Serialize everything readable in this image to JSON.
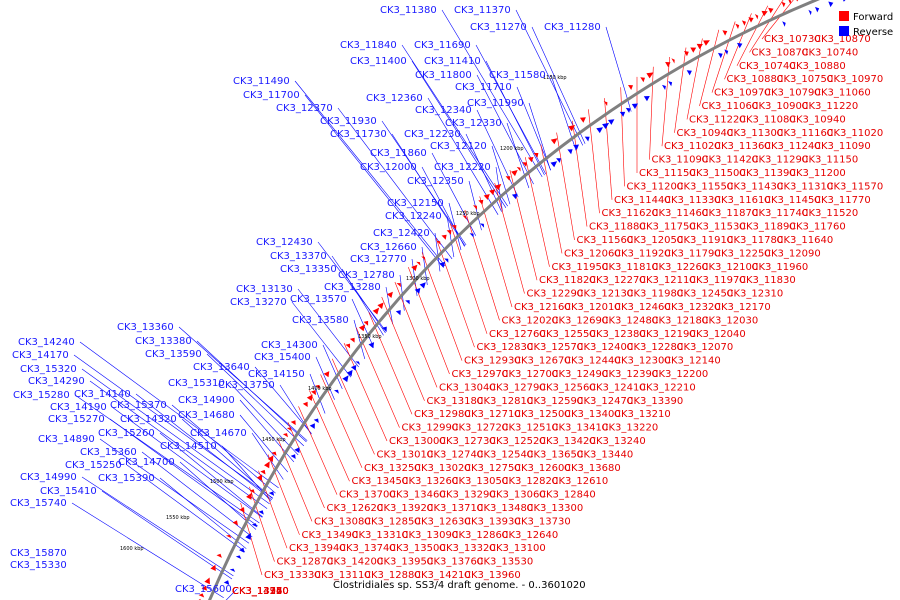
{
  "caption": "Clostridiales sp. SS3/4 draft genome. - 0..3601020",
  "legend": {
    "forward_label": "Forward",
    "reverse_label": "Reverse",
    "forward_color": "#ff0000",
    "reverse_color": "#0000ff"
  },
  "colors": {
    "backbone": "#808080",
    "forward_label": "#e60000",
    "reverse_label": "#1a1aff"
  },
  "kbp_ticks": [
    "1150 kbp",
    "1200 kbp",
    "1250 kbp",
    "1300 kbp",
    "1350 kbp",
    "1400 kbp",
    "1450 kbp",
    "1500 kbp",
    "1550 kbp",
    "1600 kbp"
  ],
  "reverse_genes": [
    "CK3_11380",
    "CK3_11370",
    "CK3_11270",
    "CK3_11280",
    "CK3_11840",
    "CK3_11690",
    "CK3_11400",
    "CK3_11410",
    "CK3_11800",
    "CK3_11580",
    "CK3_11710",
    "CK3_11490",
    "CK3_11700",
    "CK3_12370",
    "CK3_12360",
    "CK3_12340",
    "CK3_11990",
    "CK3_11930",
    "CK3_11730",
    "CK3_12230",
    "CK3_12330",
    "CK3_12120",
    "CK3_11860",
    "CK3_12000",
    "CK3_12220",
    "CK3_12350",
    "CK3_12150",
    "CK3_12240",
    "CK3_12420",
    "CK3_12430",
    "CK3_12660",
    "CK3_13370",
    "CK3_12770",
    "CK3_13350",
    "CK3_12780",
    "CK3_13280",
    "CK3_13130",
    "CK3_13270",
    "CK3_13570",
    "CK3_13580",
    "CK3_13360",
    "CK3_13380",
    "CK3_14300",
    "CK3_14240",
    "CK3_13590",
    "CK3_15400",
    "CK3_14170",
    "CK3_13640",
    "CK3_15320",
    "CK3_14150",
    "CK3_15310",
    "CK3_13750",
    "CK3_14290",
    "CK3_14140",
    "CK3_15280",
    "CK3_14900",
    "CK3_15370",
    "CK3_14190",
    "CK3_14680",
    "CK3_15270",
    "CK3_14320",
    "CK3_15260",
    "CK3_14670",
    "CK3_14890",
    "CK3_14510",
    "CK3_15360",
    "CK3_14700",
    "CK3_15250",
    "CK3_14990",
    "CK3_15390",
    "CK3_15410",
    "CK3_15740",
    "CK3_15600",
    "CK3_15870",
    "CK3_15330"
  ],
  "forward_genes": [
    "CK3_10730",
    "CK3_10870",
    "CK3_10740",
    "CK3_10880",
    "CK3_10750",
    "CK3_10970",
    "CK3_10790",
    "CK3_11060",
    "CK3_10900",
    "CK3_11220",
    "CK3_11080",
    "CK3_10940",
    "CK3_11300",
    "CK3_11160",
    "CK3_11020",
    "CK3_11360",
    "CK3_11240",
    "CK3_11090",
    "CK3_11420",
    "CK3_11290",
    "CK3_11150",
    "CK3_11500",
    "CK3_11390",
    "CK3_11200",
    "CK3_11550",
    "CK3_11430",
    "CK3_11310",
    "CK3_11570",
    "CK3_11440",
    "CK3_11330",
    "CK3_11610",
    "CK3_11450",
    "CK3_11770",
    "CK3_11620",
    "CK3_11460",
    "CK3_11870",
    "CK3_11740",
    "CK3_11520",
    "CK3_11880",
    "CK3_11750",
    "CK3_11530",
    "CK3_11890",
    "CK3_11760",
    "CK3_11560",
    "CK3_12050",
    "CK3_11910",
    "CK3_11780",
    "CK3_11640",
    "CK3_12060",
    "CK3_11920",
    "CK3_11790",
    "CK3_12250",
    "CK3_12090",
    "CK3_11950",
    "CK3_11810",
    "CK3_12260",
    "CK3_12100",
    "CK3_11960",
    "CK3_11820",
    "CK3_12270",
    "CK3_12110",
    "CK3_11970",
    "CK3_11830",
    "CK3_12290",
    "CK3_12130",
    "CK3_11980",
    "CK3_12450",
    "CK3_12310",
    "CK3_12160",
    "CK3_12010",
    "CK3_12460",
    "CK3_12320",
    "CK3_12170",
    "CK3_12020",
    "CK3_12690",
    "CK3_12480",
    "CK3_12180",
    "CK3_12030",
    "CK3_12760",
    "CK3_12550",
    "CK3_12380",
    "CK3_12190",
    "CK3_12040",
    "CK3_12830",
    "CK3_12570",
    "CK3_12400",
    "CK3_12280",
    "CK3_12070",
    "CK3_12930",
    "CK3_12670",
    "CK3_12440",
    "CK3_12300",
    "CK3_12140",
    "CK3_12970",
    "CK3_12700",
    "CK3_12490",
    "CK3_12390",
    "CK3_12200",
    "CK3_13040",
    "CK3_12790",
    "CK3_12560",
    "CK3_12410",
    "CK3_12210",
    "CK3_13180",
    "CK3_12810",
    "CK3_12590",
    "CK3_12470",
    "CK3_13390",
    "CK3_12980",
    "CK3_12710",
    "CK3_12500",
    "CK3_13400",
    "CK3_13210",
    "CK3_12990",
    "CK3_12720",
    "CK3_12510",
    "CK3_13410",
    "CK3_13220",
    "CK3_13000",
    "CK3_12730",
    "CK3_12520",
    "CK3_13420",
    "CK3_13240",
    "CK3_13010",
    "CK3_12740",
    "CK3_12540",
    "CK3_13650",
    "CK3_13440",
    "CK3_13250",
    "CK3_13020",
    "CK3_12750",
    "CK3_12600",
    "CK3_13680",
    "CK3_13450",
    "CK3_13260",
    "CK3_13050",
    "CK3_12820",
    "CK3_12610",
    "CK3_13700",
    "CK3_13460",
    "CK3_13290",
    "CK3_13060",
    "CK3_12840",
    "CK3_12620",
    "CK3_13920",
    "CK3_13710",
    "CK3_13480",
    "CK3_13300",
    "CK3_13080",
    "CK3_12850",
    "CK3_12630",
    "CK3_13930",
    "CK3_13730",
    "CK3_13490",
    "CK3_13310",
    "CK3_13090",
    "CK3_12860",
    "CK3_12640",
    "CK3_13940",
    "CK3_13740",
    "CK3_13500",
    "CK3_13320",
    "CK3_13100",
    "CK3_12870",
    "CK3_14200",
    "CK3_13950",
    "CK3_13760",
    "CK3_13530",
    "CK3_13330",
    "CK3_13110",
    "CK3_12880",
    "CK3_14210",
    "CK3_13960",
    "CK3_13770",
    "CK3_13340",
    "CK3_13140",
    "CK3_14220",
    "CK3_13150",
    "CK3_14960"
  ]
}
